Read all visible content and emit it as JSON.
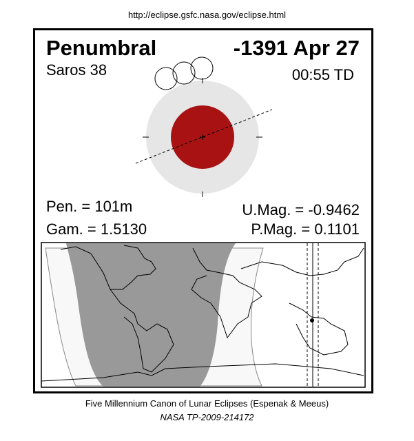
{
  "url": "http://eclipse.gsfc.nasa.gov/eclipse.html",
  "eclipse": {
    "type": "Penumbral",
    "date": "-1391 Apr 27",
    "saros": "Saros  38",
    "time": "00:55 TD",
    "pen_duration": "Pen. = 101m",
    "gamma": "Gam. = 1.5130",
    "umbral_mag": "U.Mag. = -0.9462",
    "penumbral_mag": "P.Mag. = 0.1101"
  },
  "colors": {
    "umbra": "#a81212",
    "penumbra": "#e6e6e6",
    "map_night": "#999999",
    "map_penumbral": "#f8f8f8"
  },
  "footer": {
    "line1": "Five Millennium Canon of Lunar Eclipses (Espenak & Meeus)",
    "line2": "NASA TP-2009-214172"
  }
}
